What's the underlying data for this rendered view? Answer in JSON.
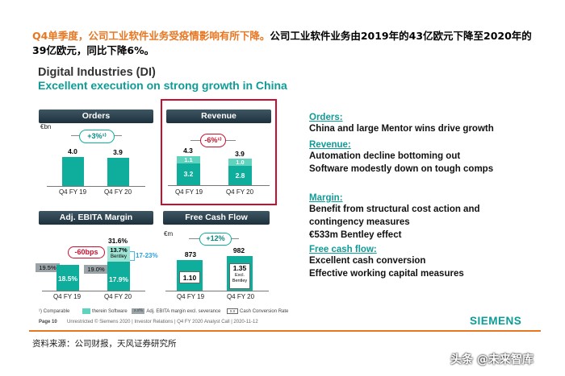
{
  "headline": {
    "highlight": "Q4单季度，公司工业软件业务受疫情影响有所下降。",
    "rest": "公司工业软件业务由2019年的43亿欧元下降至2020年的39亿欧元，同比下降6%。"
  },
  "slide": {
    "title": "Digital Industries (DI)",
    "subtitle": "Excellent execution on strong growth in China"
  },
  "panels": {
    "orders": {
      "header": "Orders",
      "unit": "€bn",
      "change": "+3%¹⁾",
      "v1": "4.0",
      "v2": "3.9",
      "x1": "Q4 FY 19",
      "x2": "Q4 FY 20"
    },
    "revenue": {
      "header": "Revenue",
      "change": "-6%¹⁾",
      "total1": "4.3",
      "total2": "3.9",
      "top1": "1.1",
      "top2": "1.0",
      "base1": "3.2",
      "base2": "2.8",
      "x1": "Q4 FY 19",
      "x2": "Q4 FY 20"
    },
    "ebita": {
      "header": "Adj. EBITA Margin",
      "change": "-60bps",
      "total2": "31.6%",
      "b1": "18.5%",
      "b2": "17.9%",
      "bentley": "13.7%",
      "bentley_label": "Bentley",
      "grey1": "19.5%",
      "grey2": "19.0%",
      "range": "17-23%",
      "x1": "Q4 FY 19",
      "x2": "Q4 FY 20"
    },
    "fcf": {
      "header": "Free Cash Flow",
      "unit": "€m",
      "change": "+12%",
      "v1": "873",
      "v2": "982",
      "box1": "1.10",
      "box2": "1.35",
      "box2_sub1": "Excl.",
      "box2_sub2": "Bentley",
      "x1": "Q4 FY 19",
      "x2": "Q4 FY 20"
    }
  },
  "right": {
    "orders_h": "Orders:",
    "orders_1": "China and large Mentor wins drive growth",
    "revenue_h": "Revenue:",
    "revenue_1": "Automation decline bottoming out",
    "revenue_2": "Software modestly down on tough comps",
    "margin_h": "Margin:",
    "margin_1": "Benefit from structural cost action and",
    "margin_2": "contingency measures",
    "margin_3": "€533m Bentley effect",
    "fcf_h": "Free cash flow:",
    "fcf_1": "Excellent cash conversion",
    "fcf_2": "Effective working capital measures"
  },
  "footnote": {
    "comparable": "¹) Comparable",
    "software": "therein Software",
    "xx": "x.x%",
    "adj": "Adj. EBITA margin excl. severance",
    "xx2": "x.x",
    "ccr": "Cash Conversion Rate",
    "page": "Page 10",
    "copyright": "Unrestricted © Siemens 2020 | Investor Relations | Q4 FY 2020 Analyst Call | 2020-11-12"
  },
  "brand": "SIEMENS",
  "source": "资料来源：公司财报，天风证券研究所",
  "watermark": "头条 @未来智库",
  "colors": {
    "teal": "#0fae9c",
    "orange": "#e87722",
    "red": "#c8102e",
    "navy": "#23394a"
  }
}
